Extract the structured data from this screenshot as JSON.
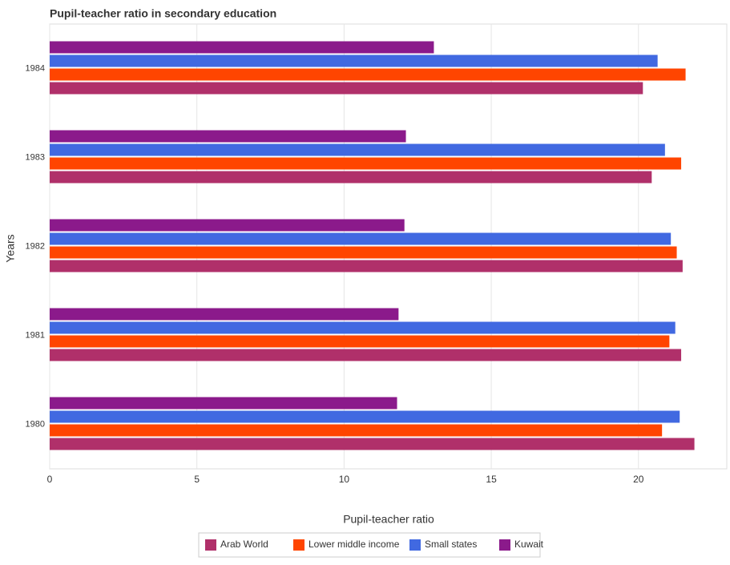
{
  "chart_data": {
    "type": "horizontal_grouped_bar",
    "title": "Pupil-teacher ratio in secondary education",
    "x_label": "Pupil-teacher ratio",
    "y_label": "Years",
    "categories": [
      "1980",
      "1981",
      "1982",
      "1983",
      "1984"
    ],
    "series": [
      {
        "name": "Arab World",
        "color": "#b0306a",
        "values": [
          21.9,
          21.45,
          21.5,
          20.45,
          20.15
        ]
      },
      {
        "name": "Lower middle income",
        "color": "#ff4500",
        "values": [
          20.8,
          21.05,
          21.3,
          21.45,
          21.6
        ]
      },
      {
        "name": "Small states",
        "color": "#4169e1",
        "values": [
          21.4,
          21.25,
          21.1,
          20.9,
          20.65
        ]
      },
      {
        "name": "Kuwait",
        "color": "#8b1a8b",
        "values": [
          11.8,
          11.85,
          12.05,
          12.1,
          13.05
        ]
      }
    ],
    "xlim": [
      0,
      23
    ],
    "xticks": [
      0,
      5,
      10,
      15,
      20
    ],
    "grid": true,
    "legend": "bottom"
  }
}
